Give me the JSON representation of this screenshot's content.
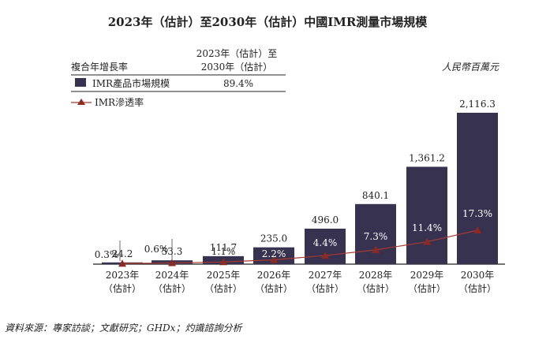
{
  "title": "2023年（估計）至2030年（估計）中國IMR測量市場規模",
  "unit": "人民幣百萬元",
  "source": "資料來源：專家訪談；文獻研究；GHDx；灼識諮詢分析",
  "legend_table": {
    "cagr_label": "複合年增長率",
    "period_header_line1": "2023年（估計）至",
    "period_header_line2": "2030年（估計）",
    "bar_series_label": "IMR產品市場規模",
    "bar_cagr": "89.4%",
    "line_series_label": "IMR滲透率"
  },
  "colors": {
    "bar": "#37324f",
    "line": "#a83a32",
    "marker": "#8e2a24"
  },
  "chart_data": {
    "type": "bar",
    "categories": [
      "2023年\n（估計）",
      "2024年\n（估計）",
      "2025年\n（估計）",
      "2026年\n（估計）",
      "2027年\n（估計）",
      "2028年\n（估計）",
      "2029年\n（估計）",
      "2030年\n（估計）"
    ],
    "category_line1": [
      "2023年",
      "2024年",
      "2025年",
      "2026年",
      "2027年",
      "2028年",
      "2029年",
      "2030年"
    ],
    "category_line2": [
      "（估計）",
      "（估計）",
      "（估計）",
      "（估計）",
      "（估計）",
      "（估計）",
      "（估計）",
      "（估計）"
    ],
    "series": [
      {
        "name": "IMR產品市場規模",
        "type": "bar",
        "values": [
          24.2,
          53.3,
          111.7,
          235.0,
          496.0,
          840.1,
          1361.2,
          2116.3
        ],
        "labels": [
          "24.2",
          "53.3",
          "111.7",
          "235.0",
          "496.0",
          "840.1",
          "1,361.2",
          "2,116.3"
        ]
      },
      {
        "name": "IMR滲透率",
        "type": "line",
        "values": [
          0.3,
          0.6,
          1.1,
          2.2,
          4.4,
          7.3,
          11.4,
          17.3
        ],
        "labels": [
          "0.3%",
          "0.6%",
          "1.1%",
          "2.2%",
          "4.4%",
          "7.3%",
          "11.4%",
          "17.3%"
        ]
      }
    ],
    "ylabel": "人民幣百萬元",
    "ylim": [
      0,
      2116.3
    ],
    "grid": false,
    "legend": "top-left"
  }
}
